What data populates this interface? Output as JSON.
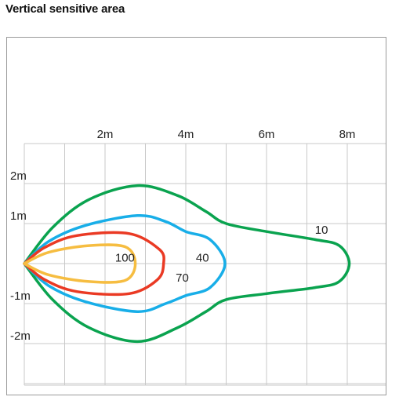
{
  "chart_data": {
    "type": "line",
    "title": "Vertical sensitive area",
    "xlabel": "",
    "ylabel": "",
    "x_unit": "m",
    "xlim": [
      0,
      9
    ],
    "ylim": [
      -3,
      3
    ],
    "x_ticks": [
      {
        "value": 2,
        "label": "2m"
      },
      {
        "value": 4,
        "label": "4m"
      },
      {
        "value": 6,
        "label": "6m"
      },
      {
        "value": 8,
        "label": "8m"
      }
    ],
    "y_ticks": [
      {
        "value": 2,
        "label": "2m"
      },
      {
        "value": 1,
        "label": "1m"
      },
      {
        "value": -1,
        "label": "-1m"
      },
      {
        "value": -2,
        "label": "-2m"
      }
    ],
    "grid": true,
    "legend": "none",
    "series": [
      {
        "name": "10",
        "color": "#0aa34f",
        "points": [
          [
            0,
            0
          ],
          [
            0.7,
            0.9
          ],
          [
            1.6,
            1.6
          ],
          [
            2.8,
            1.95
          ],
          [
            3.8,
            1.7
          ],
          [
            4.5,
            1.3
          ],
          [
            5.0,
            1.0
          ],
          [
            6.0,
            0.8
          ],
          [
            7.2,
            0.6
          ],
          [
            7.8,
            0.45
          ],
          [
            8.05,
            0.0
          ],
          [
            7.8,
            -0.45
          ],
          [
            7.2,
            -0.6
          ],
          [
            6.0,
            -0.75
          ],
          [
            5.0,
            -0.9
          ],
          [
            4.5,
            -1.2
          ],
          [
            3.8,
            -1.6
          ],
          [
            2.8,
            -1.95
          ],
          [
            1.6,
            -1.6
          ],
          [
            0.7,
            -0.9
          ],
          [
            0,
            0
          ]
        ],
        "label_pos": [
          7.2,
          0.75
        ]
      },
      {
        "name": "40",
        "color": "#18aee8",
        "points": [
          [
            0,
            0
          ],
          [
            0.6,
            0.55
          ],
          [
            1.5,
            0.95
          ],
          [
            2.8,
            1.2
          ],
          [
            3.5,
            1.05
          ],
          [
            4.0,
            0.8
          ],
          [
            4.6,
            0.6
          ],
          [
            4.97,
            0.0
          ],
          [
            4.6,
            -0.6
          ],
          [
            4.0,
            -0.8
          ],
          [
            3.5,
            -1.0
          ],
          [
            2.8,
            -1.2
          ],
          [
            1.5,
            -0.95
          ],
          [
            0.6,
            -0.55
          ],
          [
            0,
            0
          ]
        ],
        "label_pos": [
          4.25,
          0.05
        ]
      },
      {
        "name": "70",
        "color": "#ea3a24",
        "points": [
          [
            0,
            0
          ],
          [
            0.5,
            0.4
          ],
          [
            1.3,
            0.7
          ],
          [
            2.6,
            0.75
          ],
          [
            3.35,
            0.35
          ],
          [
            3.45,
            0.0
          ],
          [
            3.3,
            -0.4
          ],
          [
            2.6,
            -0.75
          ],
          [
            1.3,
            -0.7
          ],
          [
            0.5,
            -0.4
          ],
          [
            0,
            0
          ]
        ],
        "label_pos": [
          3.75,
          -0.45
        ]
      },
      {
        "name": "100",
        "color": "#f6bd41",
        "points": [
          [
            0,
            0
          ],
          [
            0.6,
            0.28
          ],
          [
            1.6,
            0.45
          ],
          [
            2.5,
            0.42
          ],
          [
            2.75,
            0.0
          ],
          [
            2.5,
            -0.42
          ],
          [
            1.6,
            -0.45
          ],
          [
            0.6,
            -0.28
          ],
          [
            0,
            0
          ]
        ],
        "label_pos": [
          2.25,
          0.05
        ]
      }
    ]
  }
}
